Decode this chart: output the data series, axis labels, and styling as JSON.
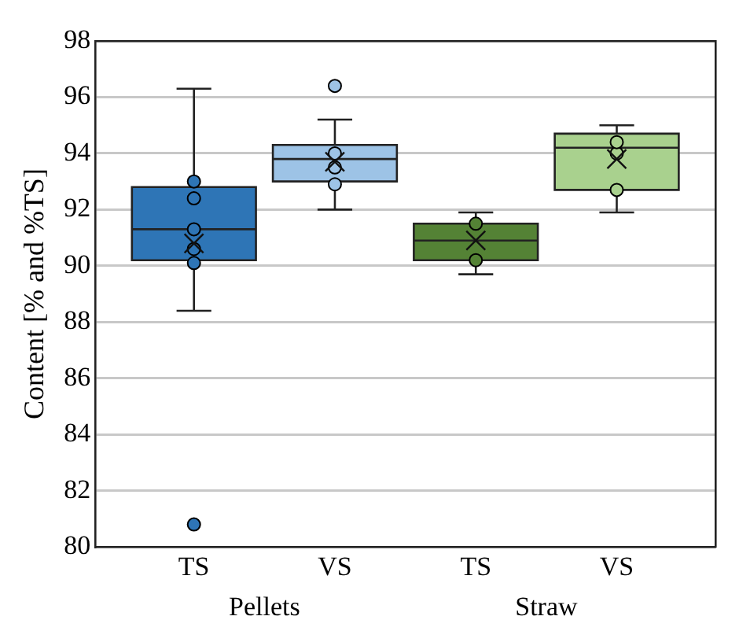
{
  "chart_data": {
    "type": "box",
    "ylabel": "Content [% and %TS]",
    "categories": [
      "TS",
      "VS",
      "TS",
      "VS"
    ],
    "colors": [
      "#2e75b6",
      "#9dc3e6",
      "#548235",
      "#a9d18e"
    ],
    "boxes": [
      {
        "low": 88.4,
        "q1": 90.2,
        "median": 91.3,
        "q3": 92.8,
        "high": 96.3,
        "mean": 90.8,
        "outliers": [
          80.8
        ]
      },
      {
        "low": 92.0,
        "q1": 93.0,
        "median": 93.8,
        "q3": 94.3,
        "high": 95.2,
        "mean": 93.7,
        "outliers": [
          96.4
        ]
      },
      {
        "low": 89.7,
        "q1": 90.2,
        "median": 90.9,
        "q3": 91.5,
        "high": 91.9,
        "mean": 90.9
      },
      {
        "low": 91.9,
        "q1": 92.7,
        "median": 94.2,
        "q3": 94.7,
        "high": 95.0,
        "mean": 93.8
      }
    ],
    "series": [
      {
        "type": "scatter",
        "colors": [
          "#2e75b6",
          "#9dc3e6",
          "#548235",
          "#a9d18e"
        ],
        "values": [
          93.0,
          94.0,
          91.5,
          94.4
        ]
      },
      {
        "type": "scatter",
        "colors": [
          "#2e75b6",
          "#9dc3e6",
          "#548235",
          "#a9d18e"
        ],
        "values": [
          92.4,
          93.5,
          90.2,
          94.0
        ]
      },
      {
        "type": "scatter",
        "colors": [
          "#2e75b6",
          "#9dc3e6",
          "#548235",
          "#a9d18e"
        ],
        "values": [
          91.3,
          92.9,
          null,
          92.7
        ]
      },
      {
        "type": "scatter",
        "values": [
          90.6,
          null,
          null,
          null
        ]
      },
      {
        "type": "scatter",
        "values": [
          90.1,
          null,
          null,
          null
        ]
      }
    ],
    "annotations": [
      "Pellets",
      "Straw"
    ],
    "ylim": [
      80,
      98
    ],
    "yticks": [
      80,
      82,
      84,
      86,
      88,
      90,
      92,
      94,
      96,
      98
    ],
    "grid": "y",
    "marker": "circle",
    "legend": false
  }
}
